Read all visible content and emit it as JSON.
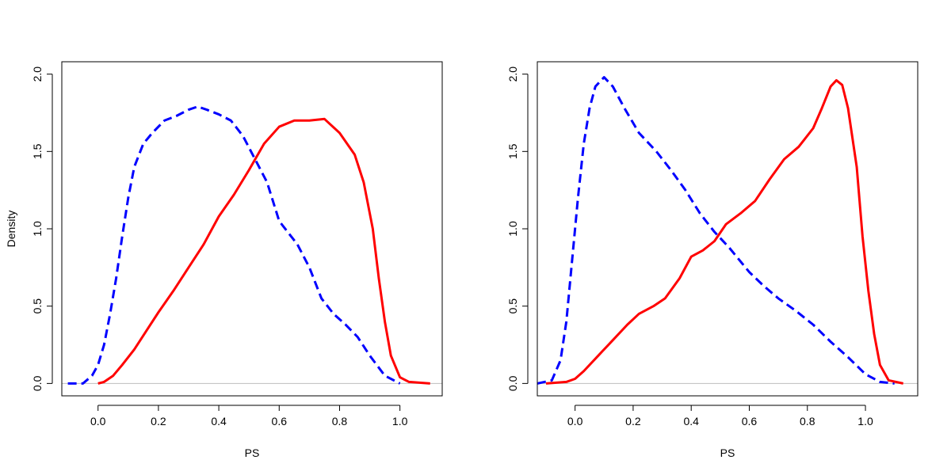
{
  "chart_data": [
    {
      "type": "line",
      "title": "",
      "xlabel": "PS",
      "ylabel": "Density",
      "xlim": [
        -0.12,
        1.14
      ],
      "ylim": [
        -0.08,
        2.08
      ],
      "xticks": [
        0.0,
        0.2,
        0.4,
        0.6,
        0.8,
        1.0
      ],
      "xtick_labels": [
        "0.0",
        "0.2",
        "0.4",
        "0.6",
        "0.8",
        "1.0"
      ],
      "yticks": [
        0.0,
        0.5,
        1.0,
        1.5,
        2.0
      ],
      "ytick_labels": [
        "0.0",
        "0.5",
        "1.0",
        "1.5",
        "2.0"
      ],
      "grid": false,
      "reference_line_y": 0,
      "series": [
        {
          "color": "#0000ff",
          "style": "dashed",
          "points": [
            [
              -0.1,
              0.0
            ],
            [
              -0.05,
              0.0
            ],
            [
              -0.02,
              0.05
            ],
            [
              0.0,
              0.12
            ],
            [
              0.02,
              0.25
            ],
            [
              0.04,
              0.45
            ],
            [
              0.06,
              0.68
            ],
            [
              0.08,
              0.95
            ],
            [
              0.1,
              1.2
            ],
            [
              0.12,
              1.4
            ],
            [
              0.15,
              1.55
            ],
            [
              0.18,
              1.62
            ],
            [
              0.22,
              1.7
            ],
            [
              0.26,
              1.73
            ],
            [
              0.3,
              1.77
            ],
            [
              0.33,
              1.79
            ],
            [
              0.36,
              1.77
            ],
            [
              0.4,
              1.74
            ],
            [
              0.44,
              1.7
            ],
            [
              0.48,
              1.6
            ],
            [
              0.52,
              1.45
            ],
            [
              0.56,
              1.3
            ],
            [
              0.6,
              1.05
            ],
            [
              0.66,
              0.9
            ],
            [
              0.7,
              0.75
            ],
            [
              0.74,
              0.55
            ],
            [
              0.78,
              0.45
            ],
            [
              0.82,
              0.38
            ],
            [
              0.86,
              0.3
            ],
            [
              0.9,
              0.18
            ],
            [
              0.95,
              0.05
            ],
            [
              1.0,
              0.0
            ]
          ]
        },
        {
          "color": "#ff0000",
          "style": "solid",
          "points": [
            [
              0.0,
              0.0
            ],
            [
              0.02,
              0.01
            ],
            [
              0.05,
              0.05
            ],
            [
              0.08,
              0.12
            ],
            [
              0.12,
              0.22
            ],
            [
              0.16,
              0.34
            ],
            [
              0.2,
              0.46
            ],
            [
              0.25,
              0.6
            ],
            [
              0.3,
              0.75
            ],
            [
              0.35,
              0.9
            ],
            [
              0.4,
              1.08
            ],
            [
              0.45,
              1.22
            ],
            [
              0.5,
              1.38
            ],
            [
              0.55,
              1.55
            ],
            [
              0.6,
              1.66
            ],
            [
              0.65,
              1.7
            ],
            [
              0.7,
              1.7
            ],
            [
              0.75,
              1.71
            ],
            [
              0.8,
              1.62
            ],
            [
              0.85,
              1.48
            ],
            [
              0.88,
              1.3
            ],
            [
              0.91,
              1.0
            ],
            [
              0.93,
              0.68
            ],
            [
              0.95,
              0.4
            ],
            [
              0.97,
              0.18
            ],
            [
              1.0,
              0.04
            ],
            [
              1.03,
              0.01
            ],
            [
              1.1,
              0.0
            ]
          ]
        }
      ]
    },
    {
      "type": "line",
      "title": "",
      "xlabel": "PS",
      "ylabel": "",
      "xlim": [
        -0.13,
        1.18
      ],
      "ylim": [
        -0.08,
        2.08
      ],
      "xticks": [
        0.0,
        0.2,
        0.4,
        0.6,
        0.8,
        1.0
      ],
      "xtick_labels": [
        "0.0",
        "0.2",
        "0.4",
        "0.6",
        "0.8",
        "1.0"
      ],
      "yticks": [
        0.0,
        0.5,
        1.0,
        1.5,
        2.0
      ],
      "ytick_labels": [
        "0.0",
        "0.5",
        "1.0",
        "1.5",
        "2.0"
      ],
      "grid": false,
      "reference_line_y": 0,
      "series": [
        {
          "color": "#0000ff",
          "style": "dashed",
          "points": [
            [
              -0.13,
              0.0
            ],
            [
              -0.08,
              0.02
            ],
            [
              -0.05,
              0.15
            ],
            [
              -0.03,
              0.4
            ],
            [
              -0.01,
              0.8
            ],
            [
              0.01,
              1.2
            ],
            [
              0.03,
              1.55
            ],
            [
              0.05,
              1.78
            ],
            [
              0.07,
              1.92
            ],
            [
              0.1,
              1.98
            ],
            [
              0.13,
              1.92
            ],
            [
              0.17,
              1.78
            ],
            [
              0.22,
              1.62
            ],
            [
              0.28,
              1.5
            ],
            [
              0.33,
              1.38
            ],
            [
              0.38,
              1.25
            ],
            [
              0.43,
              1.1
            ],
            [
              0.48,
              0.98
            ],
            [
              0.53,
              0.88
            ],
            [
              0.6,
              0.72
            ],
            [
              0.65,
              0.63
            ],
            [
              0.7,
              0.55
            ],
            [
              0.76,
              0.47
            ],
            [
              0.82,
              0.38
            ],
            [
              0.88,
              0.27
            ],
            [
              0.94,
              0.17
            ],
            [
              1.0,
              0.06
            ],
            [
              1.05,
              0.01
            ],
            [
              1.1,
              0.0
            ]
          ]
        },
        {
          "color": "#ff0000",
          "style": "solid",
          "points": [
            [
              -0.1,
              0.0
            ],
            [
              -0.03,
              0.01
            ],
            [
              0.0,
              0.03
            ],
            [
              0.03,
              0.08
            ],
            [
              0.08,
              0.18
            ],
            [
              0.13,
              0.28
            ],
            [
              0.18,
              0.38
            ],
            [
              0.22,
              0.45
            ],
            [
              0.27,
              0.5
            ],
            [
              0.31,
              0.55
            ],
            [
              0.36,
              0.68
            ],
            [
              0.4,
              0.82
            ],
            [
              0.44,
              0.86
            ],
            [
              0.48,
              0.92
            ],
            [
              0.52,
              1.03
            ],
            [
              0.57,
              1.1
            ],
            [
              0.62,
              1.18
            ],
            [
              0.67,
              1.32
            ],
            [
              0.72,
              1.45
            ],
            [
              0.77,
              1.53
            ],
            [
              0.82,
              1.65
            ],
            [
              0.85,
              1.78
            ],
            [
              0.88,
              1.92
            ],
            [
              0.9,
              1.96
            ],
            [
              0.92,
              1.93
            ],
            [
              0.94,
              1.78
            ],
            [
              0.97,
              1.4
            ],
            [
              0.99,
              0.95
            ],
            [
              1.01,
              0.6
            ],
            [
              1.03,
              0.32
            ],
            [
              1.05,
              0.12
            ],
            [
              1.08,
              0.02
            ],
            [
              1.13,
              0.0
            ]
          ]
        }
      ]
    }
  ]
}
